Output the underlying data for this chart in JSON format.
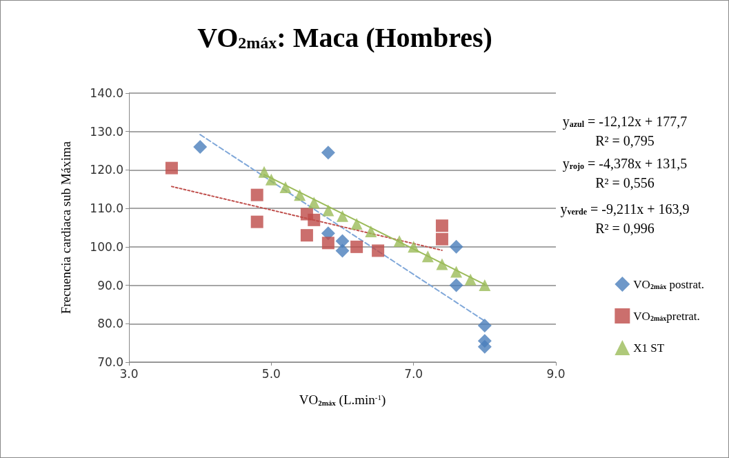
{
  "chart_data": {
    "type": "scatter",
    "title": "VO$_{2máx}$: Maca (Hombres)",
    "xlabel": "VO$_{2máx}$ (L.min$^{-1}$)",
    "ylabel": "Frecuencia cardiaca sub Máxima",
    "xlim": [
      3,
      9
    ],
    "xticks": [
      {
        "value": 3,
        "label": "3.0"
      },
      {
        "value": 5,
        "label": "5.0"
      },
      {
        "value": 7,
        "label": "7.0"
      },
      {
        "value": 9,
        "label": "9.0"
      }
    ],
    "ylim": [
      70,
      140
    ],
    "yticks": [
      {
        "value": 70,
        "label": "70.0"
      },
      {
        "value": 80,
        "label": "80.0"
      },
      {
        "value": 90,
        "label": "90.0"
      },
      {
        "value": 100,
        "label": "100.0"
      },
      {
        "value": 110,
        "label": "110.0"
      },
      {
        "value": 120,
        "label": "120.0"
      },
      {
        "value": 130,
        "label": "130.0"
      },
      {
        "value": 140,
        "label": "140.0"
      }
    ],
    "grid": "y",
    "legend": "right",
    "series": [
      {
        "name": "VO$_{2máx}$ postrat.",
        "color": "#4a7ebb",
        "marker": "diamond",
        "x": [
          4.0,
          5.8,
          5.8,
          6.0,
          6.0,
          7.6,
          7.6,
          8.0,
          8.0,
          8.0
        ],
        "values": [
          126,
          124.5,
          103.5,
          101.5,
          99,
          100,
          90,
          79.5,
          75.5,
          74
        ]
      },
      {
        "name": "VO$_{2máx}$pretrat.",
        "color": "#be4b48",
        "marker": "square",
        "x": [
          3.6,
          4.8,
          4.8,
          5.5,
          5.6,
          5.5,
          5.8,
          6.2,
          6.5,
          7.4,
          7.4
        ],
        "values": [
          120.5,
          113.5,
          106.5,
          108.5,
          107,
          103,
          101,
          100,
          99,
          105.5,
          102
        ]
      },
      {
        "name": "X1 ST",
        "color": "#9bbb59",
        "marker": "triangle",
        "x": [
          4.9,
          5.0,
          5.2,
          5.4,
          5.6,
          5.8,
          6.0,
          6.2,
          6.4,
          6.8,
          7.0,
          7.2,
          7.4,
          7.6,
          7.8,
          8.0
        ],
        "values": [
          119.5,
          117.5,
          115.5,
          113.5,
          111.5,
          109.5,
          108,
          106,
          104,
          101.5,
          100,
          97.5,
          95.5,
          93.5,
          91.5,
          90
        ]
      },
      {
        "type": "line",
        "color": "#7fa7d9",
        "line_style": "dashed",
        "marker": "none",
        "x": [
          4.0,
          8.0
        ],
        "values": [
          129.2,
          80.7
        ]
      },
      {
        "type": "line",
        "color": "#c0504d",
        "line_style": "dotted",
        "marker": "none",
        "x": [
          3.6,
          7.4
        ],
        "values": [
          115.7,
          99.1
        ]
      },
      {
        "type": "line",
        "color": "#9bbb59",
        "line_style": "solid",
        "marker": "none",
        "x": [
          4.9,
          8.0
        ],
        "values": [
          118.8,
          90.2
        ]
      }
    ],
    "annotations": [
      "y$_{azul}$ = -12,12x + 177,7",
      "R² = 0,795",
      "y$_{rojo}$ = -4,378x + 131,5",
      "R² = 0,556",
      "y$_{verde}$ = -9,211x + 163,9",
      "R² = 0,996"
    ]
  }
}
